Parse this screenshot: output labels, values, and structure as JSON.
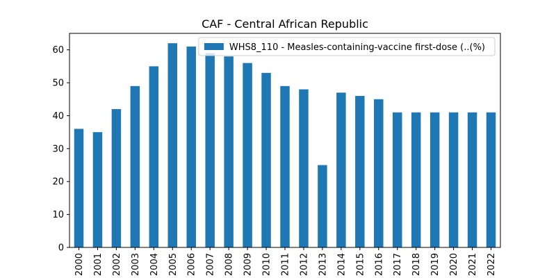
{
  "chart_data": {
    "type": "bar",
    "title": "CAF - Central African Republic",
    "xlabel": "",
    "ylabel": "",
    "categories": [
      "2000",
      "2001",
      "2002",
      "2003",
      "2004",
      "2005",
      "2006",
      "2007",
      "2008",
      "2009",
      "2010",
      "2011",
      "2012",
      "2013",
      "2014",
      "2015",
      "2016",
      "2017",
      "2018",
      "2019",
      "2020",
      "2021",
      "2022"
    ],
    "series": [
      {
        "name": "WHS8_110 - Measles-containing-vaccine first-dose (..(%)",
        "values": [
          36,
          35,
          42,
          49,
          55,
          62,
          61,
          59,
          58,
          56,
          53,
          49,
          48,
          25,
          47,
          46,
          45,
          41,
          41,
          41,
          41,
          41,
          41
        ]
      }
    ],
    "ylim": [
      0,
      65
    ],
    "yticks": [
      0,
      10,
      20,
      30,
      40,
      50,
      60
    ],
    "grid": false,
    "legend_position": "top-right",
    "bar_color": "#1f77b4"
  }
}
